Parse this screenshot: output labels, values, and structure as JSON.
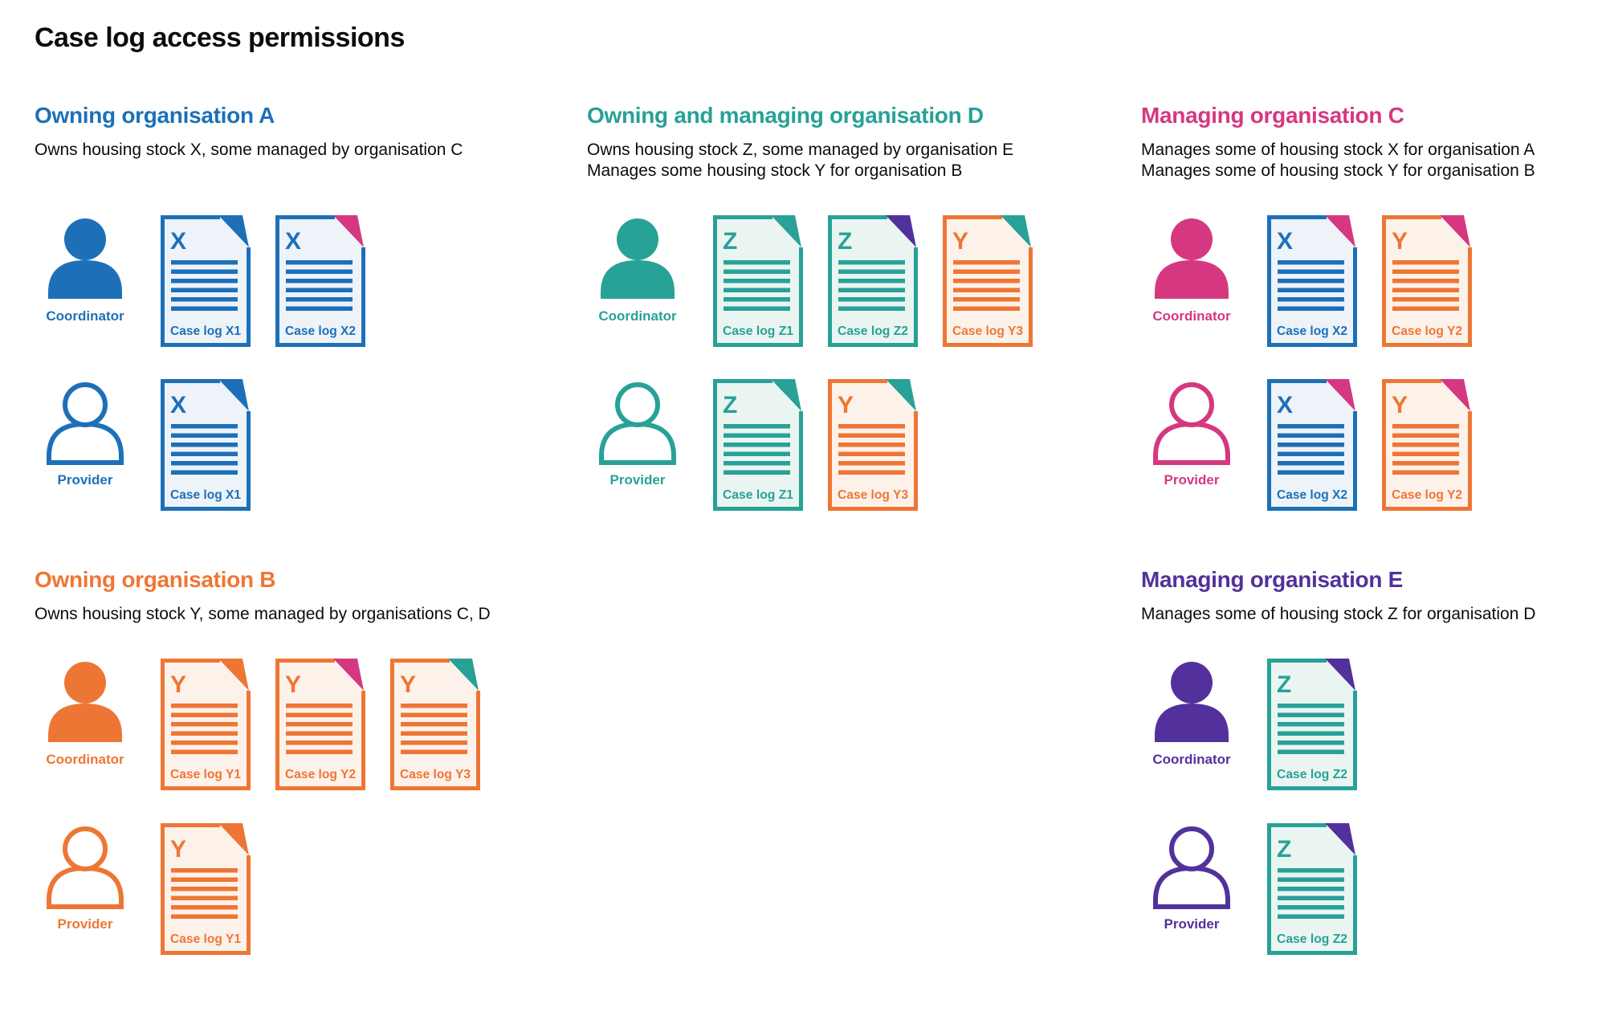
{
  "title": "Case log access permissions",
  "palette": {
    "blue": {
      "main": "#1d70b8",
      "tint": "#eef3fa"
    },
    "teal": {
      "main": "#28a197",
      "tint": "#eaf5f2"
    },
    "orange": {
      "main": "#ee7635",
      "tint": "#fdf2ea"
    },
    "pink": {
      "main": "#d53880",
      "tint": "#fbeaf2"
    },
    "purple": {
      "main": "#52319c",
      "tint": "#ece8f5"
    },
    "text": "#0b0c0c",
    "background": "#ffffff"
  },
  "sections": [
    {
      "name": "organisation-a",
      "heading": "Owning organisation A",
      "color": "blue",
      "description": [
        "Owns housing stock X, some managed by organisation C"
      ],
      "column": 0,
      "band": 0,
      "rows": [
        {
          "role": "Coordinator",
          "style": "solid",
          "docs": [
            {
              "letter": "X",
              "label": "Case log X1",
              "owner": "blue",
              "manager": "blue"
            },
            {
              "letter": "X",
              "label": "Case log X2",
              "owner": "blue",
              "manager": "pink"
            }
          ]
        },
        {
          "role": "Provider",
          "style": "outline",
          "docs": [
            {
              "letter": "X",
              "label": "Case log X1",
              "owner": "blue",
              "manager": "blue"
            }
          ]
        }
      ]
    },
    {
      "name": "organisation-d",
      "heading": "Owning and managing organisation D",
      "color": "teal",
      "description": [
        "Owns housing stock Z, some managed by organisation E",
        "Manages some housing stock Y for organisation B"
      ],
      "column": 1,
      "band": 0,
      "rows": [
        {
          "role": "Coordinator",
          "style": "solid",
          "docs": [
            {
              "letter": "Z",
              "label": "Case log Z1",
              "owner": "teal",
              "manager": "teal"
            },
            {
              "letter": "Z",
              "label": "Case log Z2",
              "owner": "teal",
              "manager": "purple"
            },
            {
              "letter": "Y",
              "label": "Case log Y3",
              "owner": "orange",
              "manager": "teal"
            }
          ]
        },
        {
          "role": "Provider",
          "style": "outline",
          "docs": [
            {
              "letter": "Z",
              "label": "Case log Z1",
              "owner": "teal",
              "manager": "teal"
            },
            {
              "letter": "Y",
              "label": "Case log Y3",
              "owner": "orange",
              "manager": "teal"
            }
          ]
        }
      ]
    },
    {
      "name": "organisation-c",
      "heading": "Managing organisation C",
      "color": "pink",
      "description": [
        "Manages some of housing stock X for organisation A",
        "Manages some of housing stock Y for organisation B"
      ],
      "column": 2,
      "band": 0,
      "rows": [
        {
          "role": "Coordinator",
          "style": "solid",
          "docs": [
            {
              "letter": "X",
              "label": "Case log X2",
              "owner": "blue",
              "manager": "pink"
            },
            {
              "letter": "Y",
              "label": "Case log Y2",
              "owner": "orange",
              "manager": "pink"
            }
          ]
        },
        {
          "role": "Provider",
          "style": "outline",
          "docs": [
            {
              "letter": "X",
              "label": "Case log X2",
              "owner": "blue",
              "manager": "pink"
            },
            {
              "letter": "Y",
              "label": "Case log Y2",
              "owner": "orange",
              "manager": "pink"
            }
          ]
        }
      ]
    },
    {
      "name": "organisation-b",
      "heading": "Owning organisation B",
      "color": "orange",
      "description": [
        "Owns housing stock Y, some managed by organisations C, D"
      ],
      "column": 0,
      "band": 1,
      "rows": [
        {
          "role": "Coordinator",
          "style": "solid",
          "docs": [
            {
              "letter": "Y",
              "label": "Case log Y1",
              "owner": "orange",
              "manager": "orange"
            },
            {
              "letter": "Y",
              "label": "Case log Y2",
              "owner": "orange",
              "manager": "pink"
            },
            {
              "letter": "Y",
              "label": "Case log Y3",
              "owner": "orange",
              "manager": "teal"
            }
          ]
        },
        {
          "role": "Provider",
          "style": "outline",
          "docs": [
            {
              "letter": "Y",
              "label": "Case log Y1",
              "owner": "orange",
              "manager": "orange"
            }
          ]
        }
      ]
    },
    {
      "name": "organisation-e",
      "heading": "Managing organisation E",
      "color": "purple",
      "description": [
        "Manages some of housing stock Z for organisation D"
      ],
      "column": 2,
      "band": 1,
      "rows": [
        {
          "role": "Coordinator",
          "style": "solid",
          "docs": [
            {
              "letter": "Z",
              "label": "Case log Z2",
              "owner": "teal",
              "manager": "purple"
            }
          ]
        },
        {
          "role": "Provider",
          "style": "outline",
          "docs": [
            {
              "letter": "Z",
              "label": "Case log Z2",
              "owner": "teal",
              "manager": "purple"
            }
          ]
        }
      ]
    }
  ]
}
